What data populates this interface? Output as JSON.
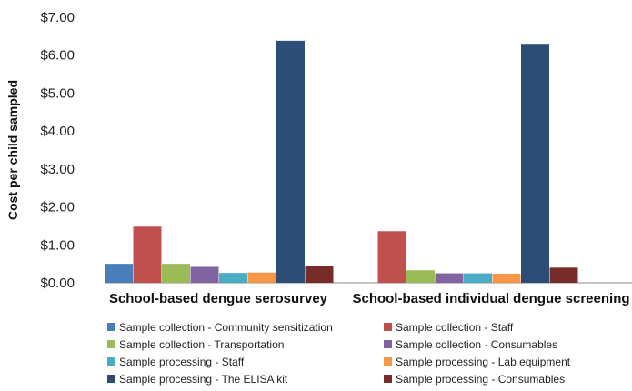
{
  "chart_data": {
    "type": "bar",
    "title": "",
    "xlabel": "",
    "ylabel": "Cost per child sampled",
    "ylim": [
      0,
      7
    ],
    "yticks": [
      "$0.00",
      "$1.00",
      "$2.00",
      "$3.00",
      "$4.00",
      "$5.00",
      "$6.00",
      "$7.00"
    ],
    "grid": false,
    "legend_position": "bottom",
    "categories": [
      "School-based dengue serosurvey",
      "School-based individual dengue screening"
    ],
    "series": [
      {
        "name": "Sample collection - Community sensitization",
        "color": "#4a7ebb",
        "values": [
          0.5,
          0
        ]
      },
      {
        "name": "Sample collection - Staff",
        "color": "#c0504d",
        "values": [
          1.48,
          1.36
        ]
      },
      {
        "name": "Sample collection - Transportation",
        "color": "#9bbb59",
        "values": [
          0.5,
          0.33
        ]
      },
      {
        "name": "Sample collection - Consumables",
        "color": "#8064a2",
        "values": [
          0.42,
          0.25
        ]
      },
      {
        "name": "Sample processing - Staff",
        "color": "#4bacc6",
        "values": [
          0.26,
          0.25
        ]
      },
      {
        "name": "Sample processing - Lab equipment",
        "color": "#f79646",
        "values": [
          0.27,
          0.24
        ]
      },
      {
        "name": "Sample processing - The ELISA kit",
        "color": "#2c4d75",
        "values": [
          6.38,
          6.3
        ]
      },
      {
        "name": "Sample processing - Consumables",
        "color": "#772c2a",
        "values": [
          0.44,
          0.4
        ]
      }
    ]
  }
}
